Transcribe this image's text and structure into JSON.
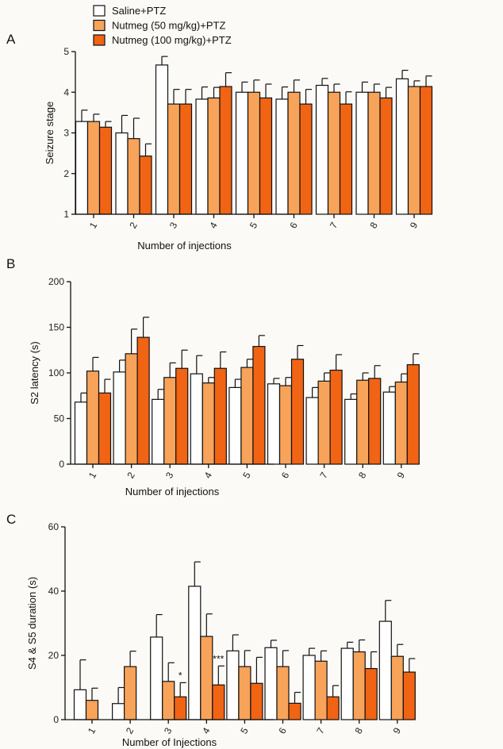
{
  "legend": [
    {
      "label": "Saline+PTZ",
      "color": "#ffffff"
    },
    {
      "label": "Nutmeg (50 mg/kg)+PTZ",
      "color": "#f7a35a"
    },
    {
      "label": "Nutmeg (100 mg/kg)+PTZ",
      "color": "#f06414"
    }
  ],
  "chart_data": [
    {
      "panel": "A",
      "type": "bar",
      "title": "",
      "ylabel": "Seizure stage",
      "xlabel": "Number of injections",
      "ylim": [
        1,
        5
      ],
      "yticks": [
        1,
        2,
        3,
        4,
        5
      ],
      "categories": [
        "1",
        "2",
        "3",
        "4",
        "5",
        "6",
        "7",
        "8",
        "9"
      ],
      "series": [
        {
          "name": "Saline+PTZ",
          "values": [
            3.28,
            3.0,
            4.67,
            3.83,
            4.0,
            3.83,
            4.17,
            4.0,
            4.33
          ],
          "errors": [
            0.28,
            0.43,
            0.21,
            0.3,
            0.25,
            0.3,
            0.17,
            0.25,
            0.21
          ]
        },
        {
          "name": "Nutmeg (50 mg/kg)+PTZ",
          "values": [
            3.28,
            2.86,
            3.71,
            3.86,
            4.0,
            4.0,
            4.0,
            4.0,
            4.14
          ],
          "errors": [
            0.18,
            0.5,
            0.36,
            0.26,
            0.3,
            0.3,
            0.2,
            0.2,
            0.14
          ]
        },
        {
          "name": "Nutmeg (100 mg/kg)+PTZ",
          "values": [
            3.14,
            2.43,
            3.71,
            4.14,
            3.86,
            3.71,
            3.71,
            3.86,
            4.14
          ],
          "errors": [
            0.14,
            0.3,
            0.36,
            0.34,
            0.34,
            0.36,
            0.3,
            0.26,
            0.26
          ]
        }
      ],
      "annotations": []
    },
    {
      "panel": "B",
      "type": "bar",
      "title": "",
      "ylabel": "S2 latency (s)",
      "xlabel": "Number of injections",
      "ylim": [
        0,
        200
      ],
      "yticks": [
        0,
        50,
        100,
        150,
        200
      ],
      "categories": [
        "1",
        "2",
        "3",
        "4",
        "5",
        "6",
        "7",
        "8",
        "9"
      ],
      "series": [
        {
          "name": "Saline+PTZ",
          "values": [
            68,
            101,
            71,
            99,
            84,
            88,
            73,
            71,
            79
          ],
          "errors": [
            10,
            13,
            11,
            20,
            9,
            6,
            11,
            6,
            6
          ]
        },
        {
          "name": "Nutmeg (50 mg/kg)+PTZ",
          "values": [
            102,
            121,
            95,
            89,
            106,
            86,
            91,
            92,
            90
          ],
          "errors": [
            15,
            27,
            16,
            6,
            9,
            9,
            9,
            8,
            9
          ]
        },
        {
          "name": "Nutmeg (100 mg/kg)+PTZ",
          "values": [
            78,
            139,
            105,
            105,
            129,
            115,
            103,
            94,
            109
          ],
          "errors": [
            15,
            22,
            20,
            18,
            12,
            15,
            17,
            14,
            12
          ]
        }
      ],
      "annotations": []
    },
    {
      "panel": "C",
      "type": "bar",
      "title": "",
      "ylabel": "S4 & S5 duration (s)",
      "xlabel": "Number of Injections",
      "ylim": [
        0,
        60
      ],
      "yticks": [
        0,
        20,
        40,
        60
      ],
      "categories": [
        "1",
        "2",
        "3",
        "4",
        "5",
        "6",
        "7",
        "8",
        "9"
      ],
      "series": [
        {
          "name": "Saline+PTZ",
          "values": [
            9.3,
            5.0,
            25.7,
            41.5,
            21.4,
            22.4,
            20.0,
            22.2,
            30.6
          ],
          "errors": [
            9.3,
            5.0,
            7.0,
            7.6,
            5.0,
            2.3,
            2.2,
            1.9,
            6.5
          ]
        },
        {
          "name": "Nutmeg (50 mg/kg)+PTZ",
          "values": [
            6.0,
            16.5,
            11.9,
            25.9,
            16.5,
            16.5,
            18.2,
            21.1,
            19.7
          ],
          "errors": [
            3.8,
            4.8,
            5.8,
            7.0,
            5.0,
            5.0,
            3.2,
            3.7,
            3.7
          ]
        },
        {
          "name": "Nutmeg (100 mg/kg)+PTZ",
          "values": [
            null,
            null,
            7.1,
            10.8,
            11.3,
            5.1,
            7.1,
            15.9,
            14.8
          ],
          "errors": [
            null,
            null,
            4.4,
            5.9,
            8.1,
            3.4,
            3.5,
            5.2,
            4.2
          ]
        }
      ],
      "annotations": [
        {
          "category": "3",
          "series": "Nutmeg (100 mg/kg)+PTZ",
          "text": "*"
        },
        {
          "category": "4",
          "series": "Nutmeg (100 mg/kg)+PTZ",
          "text": "***"
        }
      ]
    }
  ]
}
